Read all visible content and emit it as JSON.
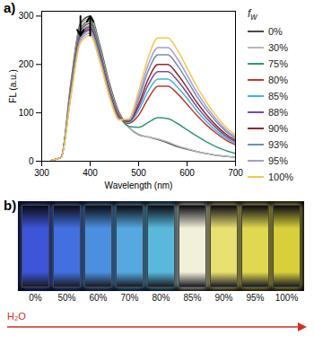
{
  "chart_data": {
    "type": "line",
    "title": "a)",
    "xlabel": "Wavelength (nm)",
    "ylabel": "FL (a.u.)",
    "xlim": [
      300,
      700
    ],
    "xticks": [
      300,
      400,
      500,
      600,
      700
    ],
    "ylim": [
      0,
      310
    ],
    "yticks": [
      0,
      100,
      200,
      300
    ],
    "legend": "right",
    "legend_title": {
      "text": "f",
      "subscript": "w"
    },
    "x": [
      320,
      340,
      360,
      380,
      400,
      420,
      440,
      460,
      480,
      500,
      520,
      540,
      560,
      580,
      600,
      620,
      640,
      660,
      680,
      700
    ],
    "series": [
      {
        "name": "0%",
        "color": "#4a4a4a",
        "values": [
          2,
          8,
          160,
          285,
          300,
          240,
          160,
          100,
          70,
          55,
          50,
          45,
          38,
          30,
          25,
          20,
          16,
          12,
          10,
          8
        ]
      },
      {
        "name": "30%",
        "color": "#b8b8b8",
        "values": [
          2,
          8,
          155,
          280,
          295,
          235,
          155,
          98,
          70,
          56,
          50,
          46,
          40,
          32,
          26,
          20,
          16,
          12,
          10,
          8
        ]
      },
      {
        "name": "75%",
        "color": "#2e9a6e",
        "values": [
          2,
          8,
          150,
          275,
          290,
          230,
          150,
          95,
          72,
          70,
          80,
          90,
          88,
          78,
          65,
          52,
          40,
          30,
          22,
          16
        ]
      },
      {
        "name": "80%",
        "color": "#c0392b",
        "values": [
          2,
          8,
          148,
          270,
          285,
          225,
          148,
          95,
          78,
          95,
          130,
          155,
          155,
          140,
          118,
          95,
          75,
          58,
          44,
          34
        ]
      },
      {
        "name": "85%",
        "color": "#3fb6d8",
        "values": [
          2,
          8,
          145,
          265,
          280,
          222,
          145,
          93,
          80,
          105,
          145,
          170,
          170,
          153,
          130,
          104,
          82,
          63,
          48,
          37
        ]
      },
      {
        "name": "88%",
        "color": "#7b4a9a",
        "values": [
          2,
          8,
          143,
          262,
          277,
          220,
          143,
          92,
          82,
          112,
          158,
          185,
          185,
          167,
          141,
          113,
          89,
          69,
          52,
          40
        ]
      },
      {
        "name": "90%",
        "color": "#8e2a2a",
        "values": [
          2,
          8,
          140,
          258,
          273,
          217,
          140,
          90,
          83,
          118,
          170,
          200,
          200,
          180,
          152,
          122,
          96,
          74,
          56,
          43
        ]
      },
      {
        "name": "93%",
        "color": "#6f8fb8",
        "values": [
          2,
          8,
          138,
          255,
          270,
          214,
          138,
          88,
          85,
          128,
          187,
          220,
          220,
          198,
          167,
          134,
          106,
          82,
          62,
          47
        ]
      },
      {
        "name": "95%",
        "color": "#a99ad6",
        "values": [
          2,
          8,
          135,
          250,
          265,
          210,
          135,
          87,
          86,
          135,
          200,
          235,
          235,
          212,
          178,
          143,
          113,
          87,
          66,
          50
        ]
      },
      {
        "name": "100%",
        "color": "#f2c84b",
        "values": [
          2,
          8,
          132,
          245,
          260,
          205,
          132,
          85,
          88,
          145,
          215,
          255,
          255,
          230,
          193,
          155,
          122,
          94,
          71,
          54
        ]
      }
    ]
  },
  "photo": {
    "label": "b)",
    "samples": [
      {
        "label": "0%",
        "color": "#3d55d8"
      },
      {
        "label": "50%",
        "color": "#4270e0"
      },
      {
        "label": "60%",
        "color": "#4b90e0"
      },
      {
        "label": "70%",
        "color": "#55a8e0"
      },
      {
        "label": "80%",
        "color": "#5ab8dc"
      },
      {
        "label": "85%",
        "color": "#f2f0d8"
      },
      {
        "label": "90%",
        "color": "#e8e070"
      },
      {
        "label": "95%",
        "color": "#e0d850"
      },
      {
        "label": "100%",
        "color": "#d8cf3a"
      }
    ],
    "axis_label": "H₂O",
    "axis_color": "#d03020"
  }
}
